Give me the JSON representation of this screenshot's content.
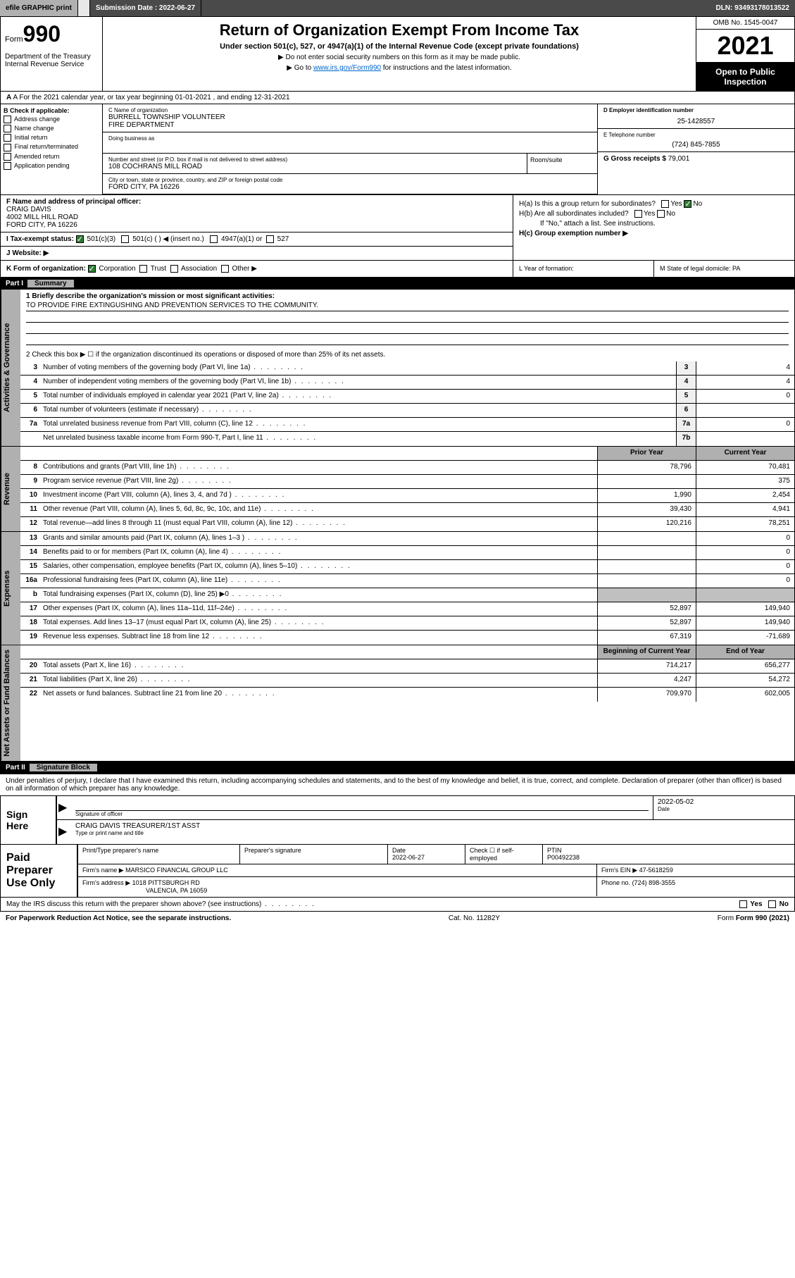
{
  "topbar": {
    "efile": "efile GRAPHIC print",
    "submission_label": "Submission Date : 2022-06-27",
    "dln": "DLN: 93493178013522"
  },
  "header": {
    "form_prefix": "Form",
    "form_number": "990",
    "title": "Return of Organization Exempt From Income Tax",
    "subtitle": "Under section 501(c), 527, or 4947(a)(1) of the Internal Revenue Code (except private foundations)",
    "note1": "▶ Do not enter social security numbers on this form as it may be made public.",
    "note2_pre": "▶ Go to ",
    "note2_link": "www.irs.gov/Form990",
    "note2_post": " for instructions and the latest information.",
    "dept": "Department of the Treasury\nInternal Revenue Service",
    "omb": "OMB No. 1545-0047",
    "year": "2021",
    "inspect": "Open to Public Inspection"
  },
  "row_a": "A For the 2021 calendar year, or tax year beginning 01-01-2021   , and ending 12-31-2021",
  "check_b": {
    "label": "B Check if applicable:",
    "items": [
      "Address change",
      "Name change",
      "Initial return",
      "Final return/terminated",
      "Amended return",
      "Application pending"
    ]
  },
  "org": {
    "c_label": "C Name of organization",
    "name": "BURRELL TOWNSHIP VOLUNTEER\nFIRE DEPARTMENT",
    "dba_label": "Doing business as",
    "addr_label": "Number and street (or P.O. box if mail is not delivered to street address)",
    "room_label": "Room/suite",
    "addr": "108 COCHRANS MILL ROAD",
    "city_label": "City or town, state or province, country, and ZIP or foreign postal code",
    "city": "FORD CITY, PA  16226"
  },
  "col_d": {
    "ein_label": "D Employer identification number",
    "ein": "25-1428557",
    "phone_label": "E Telephone number",
    "phone": "(724) 845-7855",
    "gross_label": "G Gross receipts $",
    "gross": "79,001"
  },
  "f": {
    "label": "F Name and address of principal officer:",
    "name": "CRAIG DAVIS",
    "addr1": "4002 MILL HILL ROAD",
    "addr2": "FORD CITY, PA  16226"
  },
  "h": {
    "a": "H(a)  Is this a group return for subordinates?",
    "b": "H(b)  Are all subordinates included?",
    "b_note": "If \"No,\" attach a list. See instructions.",
    "c": "H(c)  Group exemption number ▶",
    "yes": "Yes",
    "no": "No"
  },
  "i": {
    "label": "I   Tax-exempt status:",
    "opts": [
      "501(c)(3)",
      "501(c) (  ) ◀ (insert no.)",
      "4947(a)(1) or",
      "527"
    ]
  },
  "j": "J   Website: ▶",
  "k": {
    "label": "K Form of organization:",
    "opts": [
      "Corporation",
      "Trust",
      "Association",
      "Other ▶"
    ],
    "l": "L Year of formation:",
    "m": "M State of legal domicile: PA"
  },
  "part1": {
    "num": "Part I",
    "title": "Summary",
    "line1_label": "1   Briefly describe the organization's mission or most significant activities:",
    "mission": "TO PROVIDE FIRE EXTINGUSHING AND PREVENTION SERVICES TO THE COMMUNITY.",
    "line2": "2   Check this box ▶ ☐  if the organization discontinued its operations or disposed of more than 25% of its net assets.",
    "tabs": {
      "gov": "Activities & Governance",
      "rev": "Revenue",
      "exp": "Expenses",
      "net": "Net Assets or Fund Balances"
    },
    "col_headers": {
      "prior": "Prior Year",
      "current": "Current Year",
      "begin": "Beginning of Current Year",
      "end": "End of Year"
    },
    "gov_lines": [
      {
        "n": "3",
        "d": "Number of voting members of the governing body (Part VI, line 1a)",
        "b": "3",
        "v": "4"
      },
      {
        "n": "4",
        "d": "Number of independent voting members of the governing body (Part VI, line 1b)",
        "b": "4",
        "v": "4"
      },
      {
        "n": "5",
        "d": "Total number of individuals employed in calendar year 2021 (Part V, line 2a)",
        "b": "5",
        "v": "0"
      },
      {
        "n": "6",
        "d": "Total number of volunteers (estimate if necessary)",
        "b": "6",
        "v": ""
      },
      {
        "n": "7a",
        "d": "Total unrelated business revenue from Part VIII, column (C), line 12",
        "b": "7a",
        "v": "0"
      },
      {
        "n": "",
        "d": "Net unrelated business taxable income from Form 990-T, Part I, line 11",
        "b": "7b",
        "v": ""
      }
    ],
    "rev_lines": [
      {
        "n": "8",
        "d": "Contributions and grants (Part VIII, line 1h)",
        "p": "78,796",
        "c": "70,481"
      },
      {
        "n": "9",
        "d": "Program service revenue (Part VIII, line 2g)",
        "p": "",
        "c": "375"
      },
      {
        "n": "10",
        "d": "Investment income (Part VIII, column (A), lines 3, 4, and 7d )",
        "p": "1,990",
        "c": "2,454"
      },
      {
        "n": "11",
        "d": "Other revenue (Part VIII, column (A), lines 5, 6d, 8c, 9c, 10c, and 11e)",
        "p": "39,430",
        "c": "4,941"
      },
      {
        "n": "12",
        "d": "Total revenue—add lines 8 through 11 (must equal Part VIII, column (A), line 12)",
        "p": "120,216",
        "c": "78,251"
      }
    ],
    "exp_lines": [
      {
        "n": "13",
        "d": "Grants and similar amounts paid (Part IX, column (A), lines 1–3 )",
        "p": "",
        "c": "0"
      },
      {
        "n": "14",
        "d": "Benefits paid to or for members (Part IX, column (A), line 4)",
        "p": "",
        "c": "0"
      },
      {
        "n": "15",
        "d": "Salaries, other compensation, employee benefits (Part IX, column (A), lines 5–10)",
        "p": "",
        "c": "0"
      },
      {
        "n": "16a",
        "d": "Professional fundraising fees (Part IX, column (A), line 11e)",
        "p": "",
        "c": "0"
      },
      {
        "n": "b",
        "d": "Total fundraising expenses (Part IX, column (D), line 25) ▶0",
        "p": "shade",
        "c": "shade"
      },
      {
        "n": "17",
        "d": "Other expenses (Part IX, column (A), lines 11a–11d, 11f–24e)",
        "p": "52,897",
        "c": "149,940"
      },
      {
        "n": "18",
        "d": "Total expenses. Add lines 13–17 (must equal Part IX, column (A), line 25)",
        "p": "52,897",
        "c": "149,940"
      },
      {
        "n": "19",
        "d": "Revenue less expenses. Subtract line 18 from line 12",
        "p": "67,319",
        "c": "-71,689"
      }
    ],
    "net_lines": [
      {
        "n": "20",
        "d": "Total assets (Part X, line 16)",
        "p": "714,217",
        "c": "656,277"
      },
      {
        "n": "21",
        "d": "Total liabilities (Part X, line 26)",
        "p": "4,247",
        "c": "54,272"
      },
      {
        "n": "22",
        "d": "Net assets or fund balances. Subtract line 21 from line 20",
        "p": "709,970",
        "c": "602,005"
      }
    ]
  },
  "part2": {
    "num": "Part II",
    "title": "Signature Block",
    "jurat": "Under penalties of perjury, I declare that I have examined this return, including accompanying schedules and statements, and to the best of my knowledge and belief, it is true, correct, and complete. Declaration of preparer (other than officer) is based on all information of which preparer has any knowledge."
  },
  "sign": {
    "label": "Sign Here",
    "sig_label": "Signature of officer",
    "date_label": "Date",
    "date": "2022-05-02",
    "name": "CRAIG DAVIS  TREASURER/1ST ASST",
    "name_label": "Type or print name and title"
  },
  "prep": {
    "label": "Paid Preparer Use Only",
    "h1": "Print/Type preparer's name",
    "h2": "Preparer's signature",
    "h3": "Date",
    "h3v": "2022-06-27",
    "h4": "Check ☐ if self-employed",
    "h5": "PTIN",
    "ptin": "P00492238",
    "firm_label": "Firm's name    ▶",
    "firm": "MARSICO FINANCIAL GROUP LLC",
    "ein_label": "Firm's EIN ▶",
    "ein": "47-5618259",
    "addr_label": "Firm's address ▶",
    "addr1": "1018 PITTSBURGH RD",
    "addr2": "VALENCIA, PA  16059",
    "phone_label": "Phone no.",
    "phone": "(724) 898-3555"
  },
  "may_irs": {
    "q": "May the IRS discuss this return with the preparer shown above? (see instructions)",
    "yes": "Yes",
    "no": "No"
  },
  "footer": {
    "l": "For Paperwork Reduction Act Notice, see the separate instructions.",
    "m": "Cat. No. 11282Y",
    "r": "Form 990 (2021)"
  }
}
